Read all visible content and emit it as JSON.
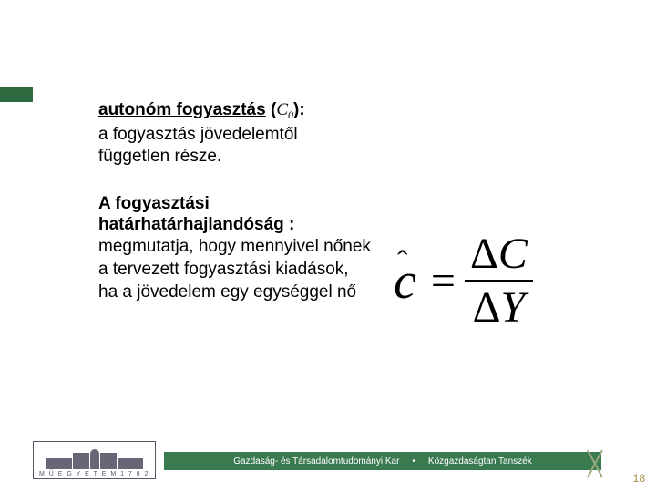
{
  "accent_color": "#2d6a3f",
  "section1": {
    "title": "autonóm fogyasztás",
    "paren_open": " (",
    "symbol": "C",
    "subscript": "0",
    "paren_close": "):",
    "description": "a fogyasztás jövedelemtől független része."
  },
  "section2": {
    "title": "A fogyasztási határhatárhajlandóság :",
    "description": "megmutatja, hogy mennyivel nőnek a tervezett fogyasztási kiadások, ha a jövedelem egy egységgel nő"
  },
  "formula": {
    "lhs_hat": "ˆ",
    "lhs_var": "c",
    "eq": "=",
    "num_delta": "Δ",
    "num_var": "C",
    "den_delta": "Δ",
    "den_var": "Y"
  },
  "footer": {
    "logo_text": "M Ű E G Y E T E M  1 7 8 2",
    "bar_left": "Gazdaság- és Társadalomtudományi Kar",
    "dot": "•",
    "bar_right": "Közgazdaságtan Tanszék",
    "bar_bg": "#3a7a4f",
    "page_number": "18"
  }
}
